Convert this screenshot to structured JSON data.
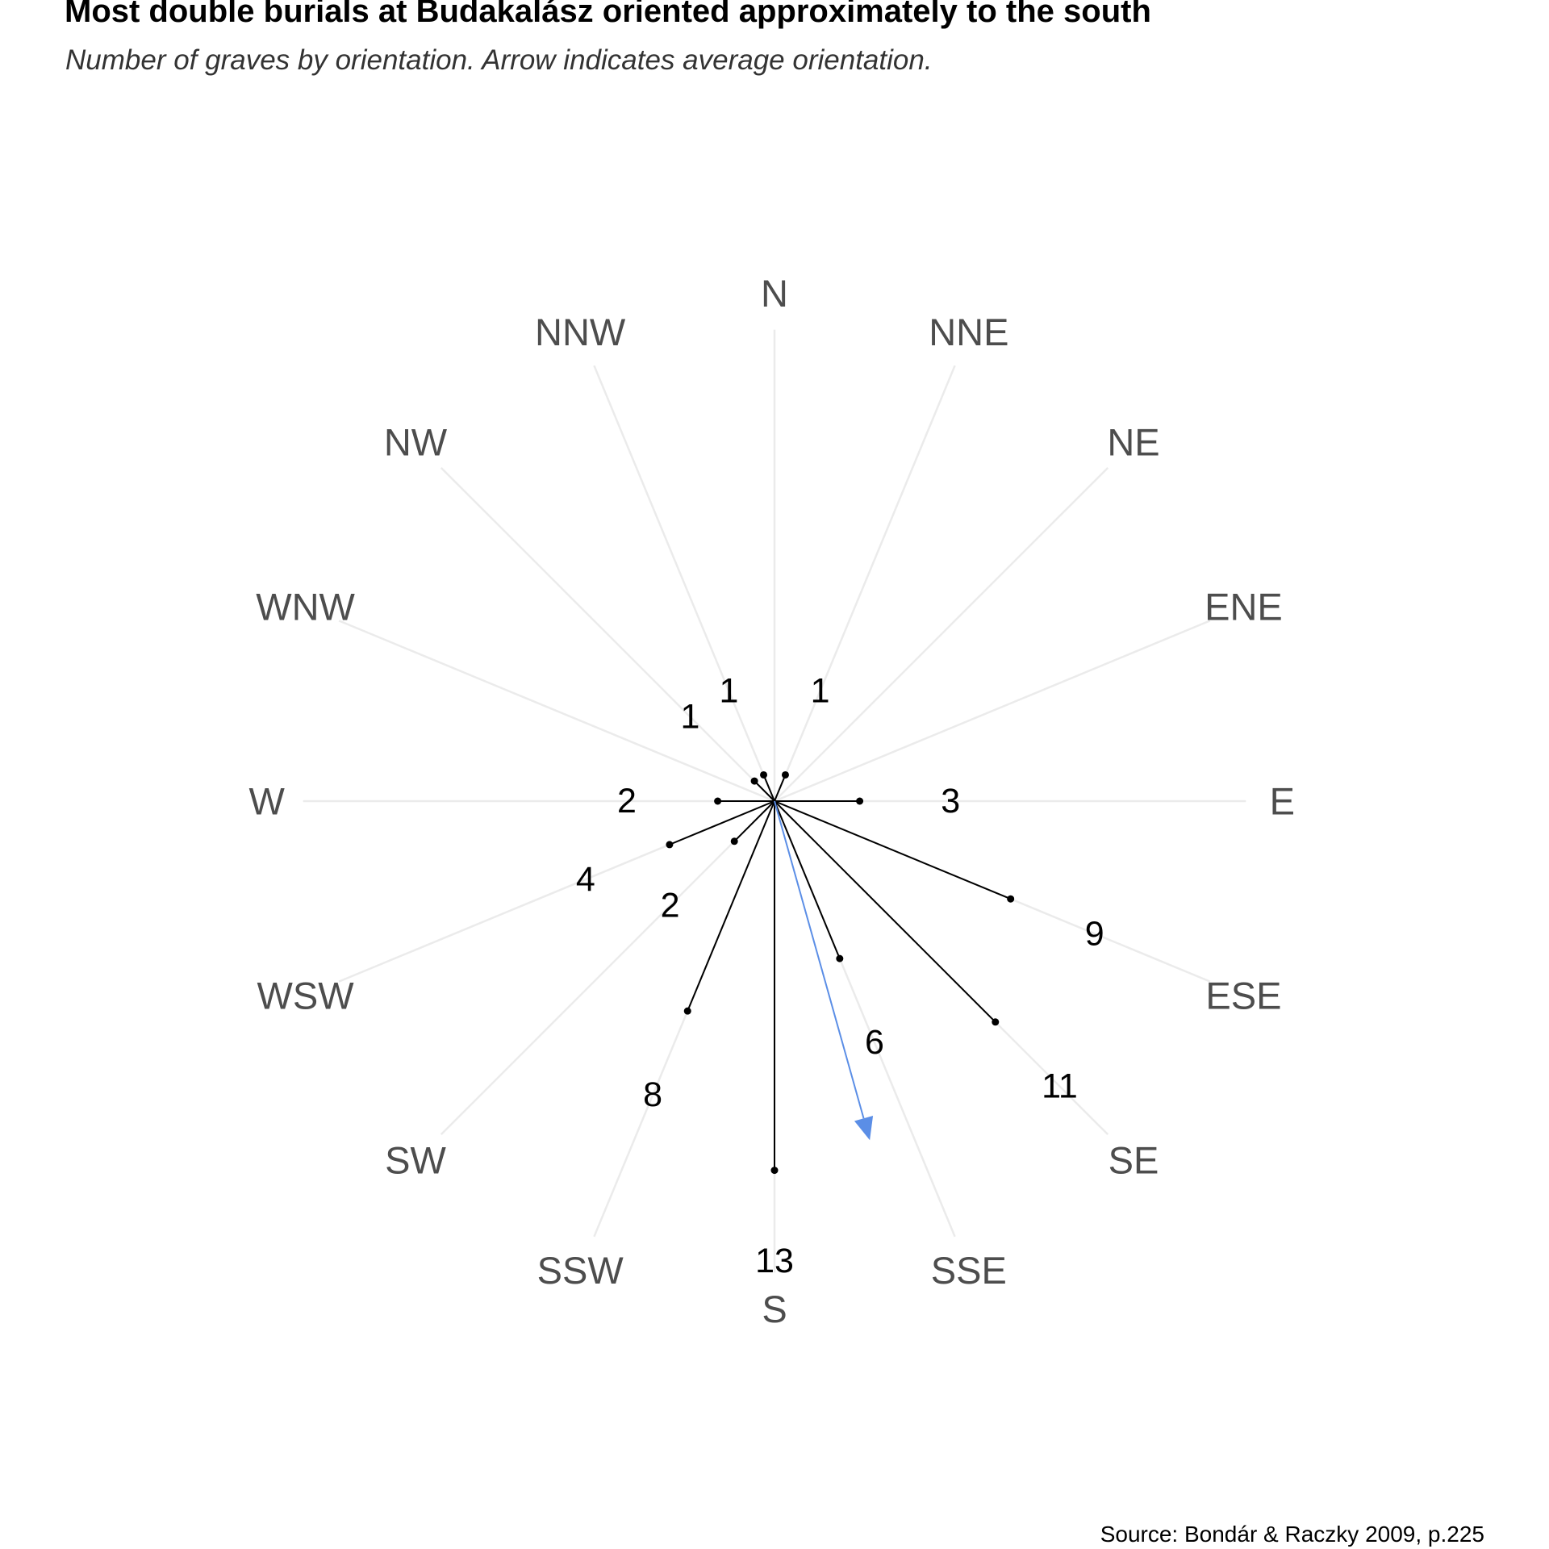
{
  "title": "Most double burials at Budakalász oriented approximately to the south",
  "subtitle": "Number of graves by orientation. Arrow indicates average orientation.",
  "caption": "Source: Bondár & Raczky 2009, p.225",
  "colors": {
    "grid": "#ebebeb",
    "segment": "#000000",
    "arrow": "#5b8ee6",
    "direction_label": "#4d4d4d",
    "count_label": "#000000"
  },
  "chart_data": {
    "type": "radial",
    "directions": [
      "N",
      "NNE",
      "NE",
      "ENE",
      "E",
      "ESE",
      "SE",
      "SSE",
      "S",
      "SSW",
      "SW",
      "WSW",
      "W",
      "WNW",
      "NW",
      "NNW"
    ],
    "bearings_deg": [
      0,
      22.5,
      45,
      67.5,
      90,
      112.5,
      135,
      157.5,
      180,
      202.5,
      225,
      247.5,
      270,
      292.5,
      315,
      337.5
    ],
    "values": [
      null,
      1,
      null,
      null,
      3,
      9,
      11,
      6,
      13,
      8,
      2,
      4,
      2,
      null,
      1,
      1
    ],
    "value_labels": [
      "",
      "1",
      "",
      "",
      "3",
      "9",
      "11",
      "6",
      "13",
      "8",
      "2",
      "4",
      "2",
      "",
      "1",
      "1"
    ],
    "max_value": 16.6,
    "mean_orientation_deg": 164.3,
    "mean_arrow_value": 12.4,
    "arrow_label": "average orientation"
  }
}
